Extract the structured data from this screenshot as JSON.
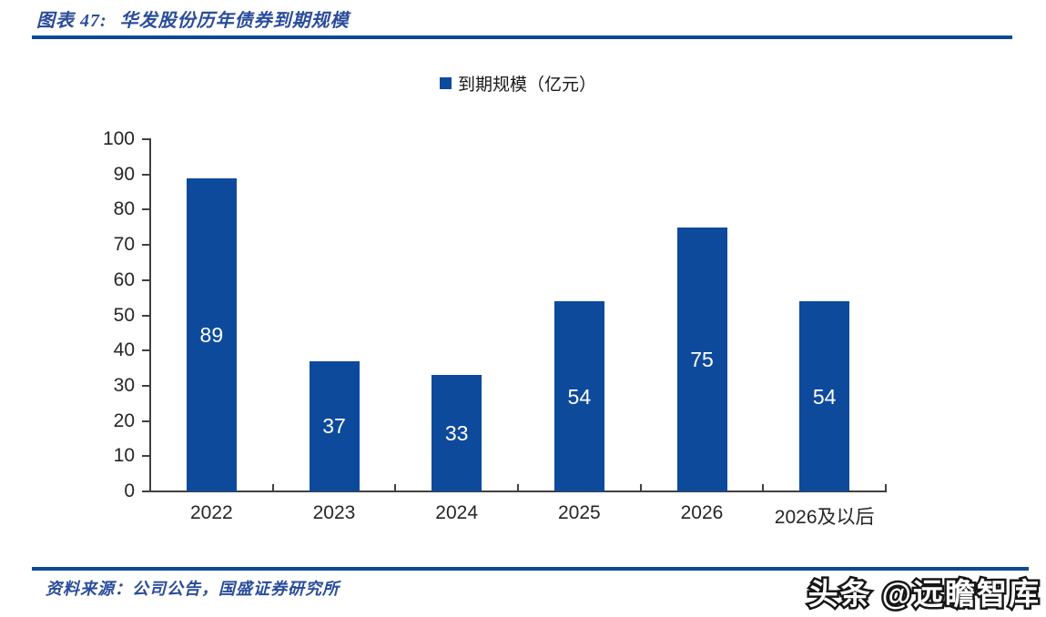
{
  "figure": {
    "label": "图表 47:",
    "title": "华发股份历年债券到期规模"
  },
  "chart_data": {
    "type": "bar",
    "title": "华发股份历年债券到期规模",
    "categories": [
      "2022",
      "2023",
      "2024",
      "2025",
      "2026",
      "2026及以后"
    ],
    "values": [
      89,
      37,
      33,
      54,
      75,
      54
    ],
    "series_name": "到期规模（亿元）",
    "legend_label": "到期规模（亿元）",
    "legend_position": "top",
    "xlabel": "",
    "ylabel": "",
    "ylim": [
      0,
      100
    ],
    "ytick_step": 10,
    "grid": false,
    "bar_color": "#0e4a9c",
    "value_label_color": "#ffffff",
    "value_label_position": "center",
    "axis_color": "#404040"
  },
  "footer": {
    "source": "资料来源：公司公告，国盛证券研究所"
  },
  "watermark": {
    "text": "头条 @远瞻智库"
  },
  "colors": {
    "accent_blue": "#0b4a99",
    "bar_blue": "#0e4a9c",
    "title_text_blue": "#2a4c9c"
  }
}
